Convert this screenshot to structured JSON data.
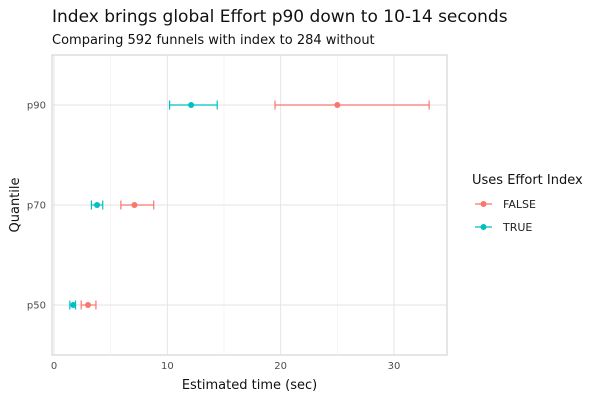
{
  "chart_data": {
    "type": "scatter",
    "title": "Index brings global Effort p90 down to 10-14 seconds",
    "subtitle": "Comparing 592 funnels with index to 284 without",
    "xlabel": "Estimated time (sec)",
    "ylabel": "Quantile",
    "xlim": [
      0,
      34.5
    ],
    "xticks": [
      0,
      10,
      20,
      30
    ],
    "categories": [
      "p50",
      "p70",
      "p90"
    ],
    "grid": true,
    "legend": {
      "title": "Uses Effort Index",
      "position": "right",
      "entries": [
        "FALSE",
        "TRUE"
      ]
    },
    "series": [
      {
        "name": "FALSE",
        "color": "#F8766D",
        "points": [
          {
            "category": "p50",
            "estimate": 3.0,
            "low": 2.4,
            "high": 3.7
          },
          {
            "category": "p70",
            "estimate": 7.1,
            "low": 5.9,
            "high": 8.8
          },
          {
            "category": "p90",
            "estimate": 25.0,
            "low": 19.5,
            "high": 33.1
          }
        ]
      },
      {
        "name": "TRUE",
        "color": "#00BFC4",
        "points": [
          {
            "category": "p50",
            "estimate": 1.7,
            "low": 1.4,
            "high": 1.9
          },
          {
            "category": "p70",
            "estimate": 3.8,
            "low": 3.3,
            "high": 4.3
          },
          {
            "category": "p90",
            "estimate": 12.1,
            "low": 10.2,
            "high": 14.4
          }
        ]
      }
    ]
  }
}
